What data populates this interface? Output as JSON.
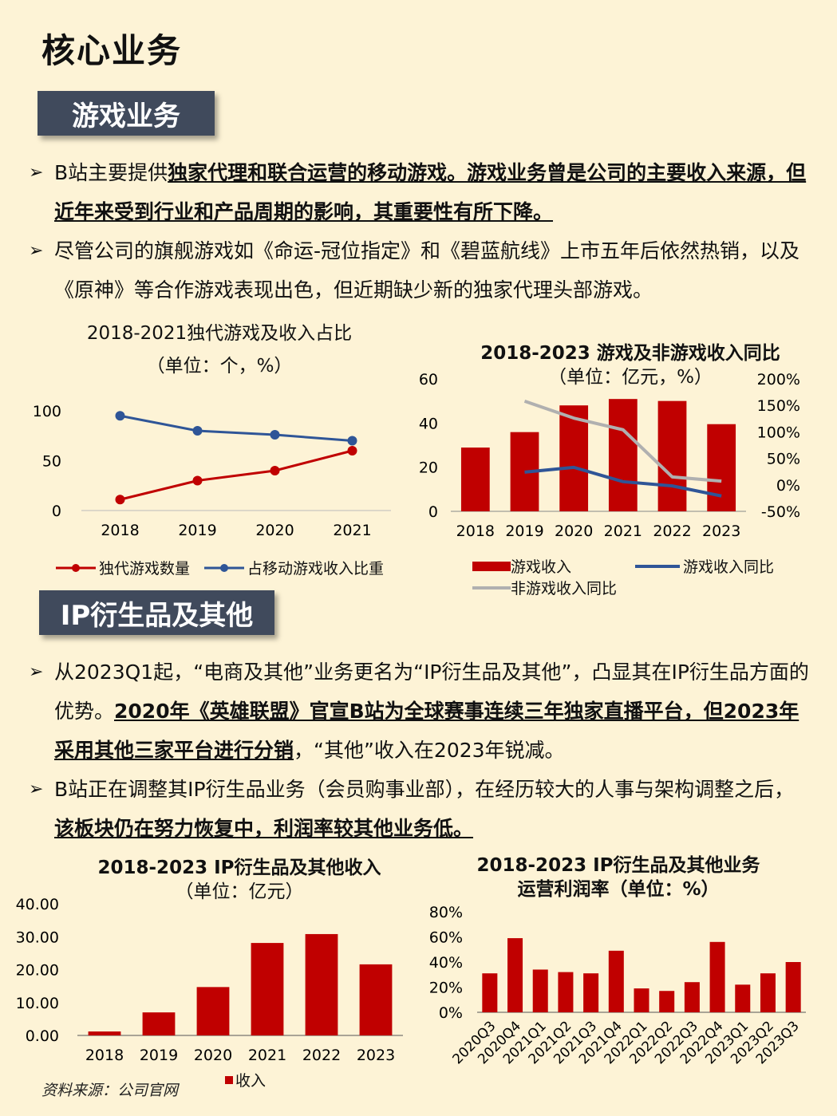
{
  "page_title": "核心业务",
  "section1": {
    "tag": "游戏业务",
    "bullets": [
      {
        "plain_before": "B站主要提供",
        "bold": "独家代理和联合运营的移动游戏。游戏业务曾是公司的主要收入来源，但近年来受到行业和产品周期的影响，其重要性有所下降。",
        "plain_after": ""
      },
      {
        "plain_before": "尽管公司的旗舰游戏如《命运-冠位指定》和《碧蓝航线》上市五年后依然热销，以及《原神》等合作游戏表现出色，但近期缺少新的独家代理头部游戏。",
        "bold": "",
        "plain_after": ""
      }
    ]
  },
  "section2": {
    "tag": "IP衍生品及其他",
    "bullets": [
      {
        "plain_before": "从2023Q1起，“电商及其他”业务更名为“IP衍生品及其他”，凸显其在IP衍生品方面的优势。",
        "bold": "2020年《英雄联盟》官宣B站为全球赛事连续三年独家直播平台，但2023年采用其他三家平台进行分销",
        "plain_after": "，“其他”收入在2023年锐减。"
      },
      {
        "plain_before": "B站正在调整其IP衍生品业务（会员购事业部），在经历较大的人事与架构调整之后，",
        "bold": "该板块仍在努力恢复中，利润率较其他业务低。",
        "plain_after": ""
      }
    ]
  },
  "source": "资料来源：公司官网",
  "colors": {
    "red": "#c00000",
    "blue": "#2f5597",
    "gray": "#b0b0b0",
    "tag_bg": "#404a5c",
    "bg": "#fdf3d6"
  },
  "chart_data": [
    {
      "type": "line",
      "title": "2018-2021独代游戏及收入占比",
      "subtitle": "（单位：个，%）",
      "x": [
        "2018",
        "2019",
        "2020",
        "2021"
      ],
      "ylim": [
        0,
        100
      ],
      "yticks": [
        "0",
        "50",
        "100"
      ],
      "series": [
        {
          "name": "独代游戏数量",
          "values": [
            11,
            30,
            40,
            60
          ],
          "color": "#c00000"
        },
        {
          "name": "占移动游戏收入比重",
          "values": [
            95,
            80,
            76,
            70
          ],
          "color": "#2f5597"
        }
      ],
      "legend": "bottom"
    },
    {
      "type": "bar+line",
      "title": "2018-2023 游戏及非游戏收入同比",
      "subtitle": "（单位：亿元，%）",
      "x": [
        "2018",
        "2019",
        "2020",
        "2021",
        "2022",
        "2023"
      ],
      "ylim_left": [
        0,
        60
      ],
      "yticks_left": [
        "0",
        "20",
        "40",
        "60"
      ],
      "ylim_right": [
        -50,
        200
      ],
      "yticks_right": [
        "-50%",
        "0%",
        "50%",
        "100%",
        "150%",
        "200%"
      ],
      "series": [
        {
          "name": "游戏收入",
          "type": "bar",
          "axis": "left",
          "values": [
            28.9,
            35.9,
            48.0,
            50.9,
            50.0,
            39.5
          ],
          "color": "#c00000"
        },
        {
          "name": "游戏收入同比",
          "type": "line",
          "axis": "right",
          "values": [
            null,
            24,
            33,
            6,
            -2,
            -21
          ],
          "color": "#2f5597"
        },
        {
          "name": "非游戏收入同比",
          "type": "line",
          "axis": "right",
          "values": [
            null,
            158,
            126,
            104,
            15,
            7
          ],
          "color": "#b0b0b0"
        }
      ],
      "legend": "bottom"
    },
    {
      "type": "bar",
      "title": "2018-2023 IP衍生品及其他收入",
      "subtitle": "（单位：亿元）",
      "categories": [
        "2018",
        "2019",
        "2020",
        "2021",
        "2022",
        "2023"
      ],
      "ylim": [
        0,
        40
      ],
      "yticks": [
        "0.00",
        "10.00",
        "20.00",
        "30.00",
        "40.00"
      ],
      "series": [
        {
          "name": "收入",
          "values": [
            1.2,
            7.0,
            14.7,
            28.1,
            30.8,
            21.6
          ],
          "color": "#c00000"
        }
      ],
      "legend": "bottom"
    },
    {
      "type": "bar",
      "title": "2018-2023 IP衍生品及其他业务",
      "subtitle": "运营利润率（单位：%）",
      "categories": [
        "2020Q3",
        "2020Q4",
        "2021Q1",
        "2021Q2",
        "2021Q3",
        "2021Q4",
        "2022Q1",
        "2022Q2",
        "2022Q3",
        "2022Q4",
        "2023Q1",
        "2023Q2",
        "2023Q3"
      ],
      "ylim": [
        0,
        80
      ],
      "yticks": [
        "0%",
        "20%",
        "40%",
        "60%",
        "80%"
      ],
      "series": [
        {
          "name": "",
          "values": [
            31,
            59,
            34,
            32,
            31,
            49,
            19,
            17,
            24,
            56,
            22,
            31,
            40
          ],
          "color": "#c00000"
        }
      ]
    }
  ]
}
